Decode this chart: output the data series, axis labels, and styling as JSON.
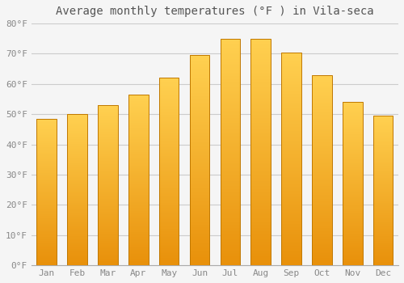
{
  "title": "Average monthly temperatures (°F ) in Vila-seca",
  "months": [
    "Jan",
    "Feb",
    "Mar",
    "Apr",
    "May",
    "Jun",
    "Jul",
    "Aug",
    "Sep",
    "Oct",
    "Nov",
    "Dec"
  ],
  "values": [
    48.5,
    50.0,
    53.0,
    56.5,
    62.0,
    69.5,
    75.0,
    75.0,
    70.5,
    63.0,
    54.0,
    49.5
  ],
  "ylim": [
    0,
    80
  ],
  "yticks": [
    0,
    10,
    20,
    30,
    40,
    50,
    60,
    70,
    80
  ],
  "ytick_labels": [
    "0°F",
    "10°F",
    "20°F",
    "30°F",
    "40°F",
    "50°F",
    "60°F",
    "70°F",
    "80°F"
  ],
  "background_color": "#F5F5F5",
  "grid_color": "#CCCCCC",
  "bar_color_bottom": "#E8900A",
  "bar_color_top": "#FFD050",
  "bar_edge_color": "#C07800",
  "title_fontsize": 10,
  "tick_fontsize": 8,
  "tick_color": "#888888",
  "title_color": "#555555",
  "bar_width": 0.65
}
